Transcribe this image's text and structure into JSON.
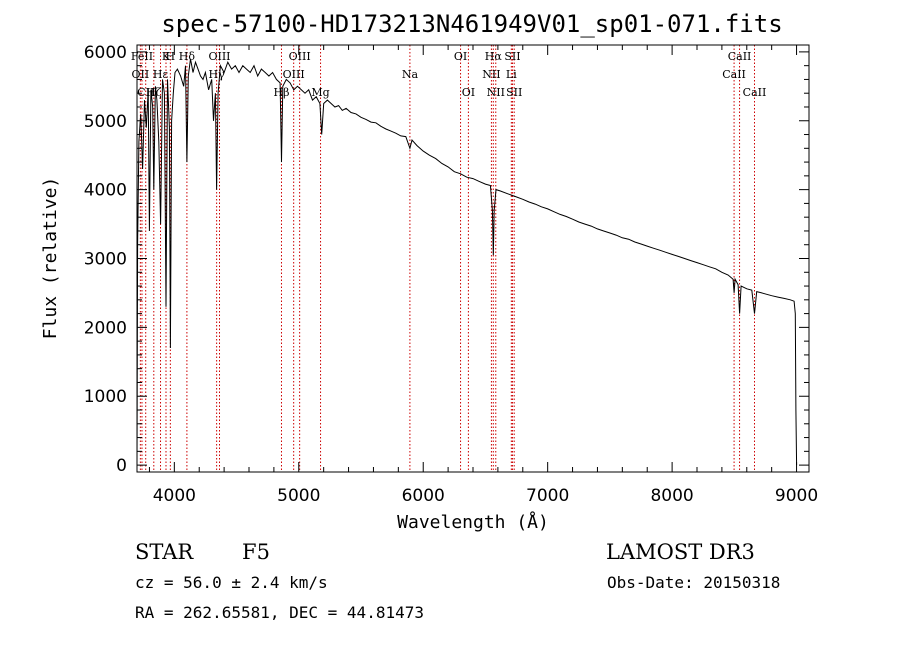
{
  "chart_data": {
    "type": "line",
    "title": "spec-57100-HD173213N461949V01_sp01-071.fits",
    "xlabel": "Wavelength (Å)",
    "ylabel": "Flux (relative)",
    "xlim": [
      3700,
      9100
    ],
    "ylim": [
      -100,
      6100
    ],
    "xticks": [
      4000,
      5000,
      6000,
      7000,
      8000,
      9000
    ],
    "yticks": [
      0,
      1000,
      2000,
      3000,
      4000,
      5000,
      6000
    ],
    "xtick_labels": [
      "4000",
      "5000",
      "6000",
      "7000",
      "8000",
      "9000"
    ],
    "ytick_labels": [
      "0",
      "1000",
      "2000",
      "3000",
      "4000",
      "5000",
      "6000"
    ],
    "spectrum": [
      [
        3700,
        0
      ],
      [
        3705,
        3200
      ],
      [
        3715,
        4700
      ],
      [
        3730,
        5100
      ],
      [
        3745,
        4300
      ],
      [
        3760,
        5300
      ],
      [
        3775,
        4900
      ],
      [
        3790,
        5450
      ],
      [
        3800,
        3400
      ],
      [
        3812,
        5450
      ],
      [
        3826,
        5200
      ],
      [
        3835,
        4000
      ],
      [
        3848,
        5500
      ],
      [
        3860,
        5300
      ],
      [
        3875,
        4700
      ],
      [
        3890,
        3500
      ],
      [
        3905,
        5600
      ],
      [
        3920,
        5400
      ],
      [
        3933,
        2300
      ],
      [
        3945,
        5600
      ],
      [
        3960,
        4900
      ],
      [
        3968,
        1700
      ],
      [
        3978,
        5000
      ],
      [
        3992,
        5400
      ],
      [
        4005,
        5700
      ],
      [
        4025,
        5750
      ],
      [
        4050,
        5650
      ],
      [
        4075,
        5500
      ],
      [
        4090,
        5800
      ],
      [
        4101,
        4400
      ],
      [
        4112,
        5650
      ],
      [
        4130,
        5900
      ],
      [
        4150,
        5700
      ],
      [
        4170,
        5850
      ],
      [
        4190,
        5750
      ],
      [
        4210,
        5650
      ],
      [
        4230,
        5600
      ],
      [
        4250,
        5700
      ],
      [
        4275,
        5450
      ],
      [
        4300,
        5600
      ],
      [
        4315,
        5000
      ],
      [
        4330,
        5400
      ],
      [
        4340,
        4000
      ],
      [
        4352,
        5400
      ],
      [
        4370,
        5800
      ],
      [
        4400,
        5700
      ],
      [
        4430,
        5850
      ],
      [
        4460,
        5750
      ],
      [
        4490,
        5800
      ],
      [
        4520,
        5700
      ],
      [
        4550,
        5800
      ],
      [
        4580,
        5750
      ],
      [
        4610,
        5700
      ],
      [
        4640,
        5800
      ],
      [
        4670,
        5650
      ],
      [
        4700,
        5750
      ],
      [
        4730,
        5700
      ],
      [
        4760,
        5650
      ],
      [
        4790,
        5700
      ],
      [
        4820,
        5600
      ],
      [
        4850,
        5550
      ],
      [
        4861,
        4400
      ],
      [
        4872,
        5500
      ],
      [
        4900,
        5600
      ],
      [
        4930,
        5550
      ],
      [
        4960,
        5450
      ],
      [
        4990,
        5500
      ],
      [
        5020,
        5450
      ],
      [
        5050,
        5400
      ],
      [
        5080,
        5450
      ],
      [
        5110,
        5300
      ],
      [
        5140,
        5350
      ],
      [
        5170,
        5250
      ],
      [
        5184,
        4800
      ],
      [
        5200,
        5250
      ],
      [
        5230,
        5300
      ],
      [
        5260,
        5250
      ],
      [
        5290,
        5200
      ],
      [
        5320,
        5220
      ],
      [
        5350,
        5150
      ],
      [
        5380,
        5180
      ],
      [
        5420,
        5120
      ],
      [
        5460,
        5100
      ],
      [
        5500,
        5050
      ],
      [
        5540,
        5020
      ],
      [
        5580,
        4980
      ],
      [
        5620,
        4970
      ],
      [
        5660,
        4920
      ],
      [
        5700,
        4880
      ],
      [
        5740,
        4850
      ],
      [
        5780,
        4820
      ],
      [
        5820,
        4780
      ],
      [
        5860,
        4770
      ],
      [
        5893,
        4600
      ],
      [
        5910,
        4720
      ],
      [
        5950,
        4640
      ],
      [
        6000,
        4560
      ],
      [
        6050,
        4500
      ],
      [
        6100,
        4450
      ],
      [
        6150,
        4380
      ],
      [
        6200,
        4330
      ],
      [
        6250,
        4260
      ],
      [
        6300,
        4230
      ],
      [
        6350,
        4180
      ],
      [
        6400,
        4160
      ],
      [
        6450,
        4120
      ],
      [
        6500,
        4080
      ],
      [
        6540,
        4060
      ],
      [
        6556,
        3700
      ],
      [
        6563,
        3050
      ],
      [
        6570,
        3700
      ],
      [
        6585,
        4000
      ],
      [
        6620,
        3980
      ],
      [
        6680,
        3940
      ],
      [
        6740,
        3900
      ],
      [
        6800,
        3860
      ],
      [
        6850,
        3820
      ],
      [
        6900,
        3790
      ],
      [
        6950,
        3750
      ],
      [
        7000,
        3720
      ],
      [
        7050,
        3680
      ],
      [
        7100,
        3640
      ],
      [
        7150,
        3610
      ],
      [
        7200,
        3570
      ],
      [
        7250,
        3530
      ],
      [
        7300,
        3500
      ],
      [
        7350,
        3470
      ],
      [
        7400,
        3430
      ],
      [
        7450,
        3400
      ],
      [
        7500,
        3370
      ],
      [
        7550,
        3340
      ],
      [
        7600,
        3300
      ],
      [
        7650,
        3280
      ],
      [
        7700,
        3240
      ],
      [
        7750,
        3210
      ],
      [
        7800,
        3180
      ],
      [
        7850,
        3150
      ],
      [
        7900,
        3120
      ],
      [
        7950,
        3090
      ],
      [
        8000,
        3060
      ],
      [
        8050,
        3030
      ],
      [
        8100,
        3000
      ],
      [
        8150,
        2970
      ],
      [
        8200,
        2940
      ],
      [
        8250,
        2910
      ],
      [
        8300,
        2880
      ],
      [
        8350,
        2850
      ],
      [
        8400,
        2800
      ],
      [
        8450,
        2760
      ],
      [
        8490,
        2700
      ],
      [
        8498,
        2500
      ],
      [
        8506,
        2700
      ],
      [
        8530,
        2620
      ],
      [
        8542,
        2200
      ],
      [
        8554,
        2600
      ],
      [
        8600,
        2560
      ],
      [
        8640,
        2540
      ],
      [
        8662,
        2200
      ],
      [
        8680,
        2520
      ],
      [
        8720,
        2500
      ],
      [
        8760,
        2480
      ],
      [
        8800,
        2460
      ],
      [
        8850,
        2440
      ],
      [
        8900,
        2420
      ],
      [
        8950,
        2400
      ],
      [
        8980,
        2380
      ],
      [
        8990,
        2200
      ],
      [
        8995,
        800
      ],
      [
        9000,
        0
      ]
    ],
    "lines": [
      {
        "name": "FeII",
        "wl": 3740,
        "row": 0
      },
      {
        "name": "K",
        "wl": 3933,
        "row": 0
      },
      {
        "name": "H",
        "wl": 3968,
        "row": 0
      },
      {
        "name": "Hδ",
        "wl": 4101,
        "row": 0
      },
      {
        "name": "OIII",
        "wl": 4363,
        "row": 0
      },
      {
        "name": "OIII",
        "wl": 5007,
        "row": 0
      },
      {
        "name": "OI",
        "wl": 6300,
        "row": 0
      },
      {
        "name": "Hα",
        "wl": 6563,
        "row": 0
      },
      {
        "name": "SII",
        "wl": 6717,
        "row": 0
      },
      {
        "name": "CaII",
        "wl": 8542,
        "row": 0
      },
      {
        "name": "OII",
        "wl": 3727,
        "row": 1
      },
      {
        "name": "Hε",
        "wl": 3889,
        "row": 1
      },
      {
        "name": "Hγ",
        "wl": 4340,
        "row": 1
      },
      {
        "name": "OIII",
        "wl": 4959,
        "row": 1
      },
      {
        "name": "Na",
        "wl": 5893,
        "row": 1
      },
      {
        "name": "NII",
        "wl": 6548,
        "row": 1
      },
      {
        "name": "Li",
        "wl": 6708,
        "row": 1
      },
      {
        "name": "CaII",
        "wl": 8498,
        "row": 1
      },
      {
        "name": "CII",
        "wl": 3770,
        "row": 2
      },
      {
        "name": "Hζ",
        "wl": 3835,
        "row": 2
      },
      {
        "name": "Hβ",
        "wl": 4861,
        "row": 2
      },
      {
        "name": "Mg",
        "wl": 5175,
        "row": 2
      },
      {
        "name": "OI",
        "wl": 6363,
        "row": 2
      },
      {
        "name": "NII",
        "wl": 6583,
        "row": 2
      },
      {
        "name": "SII",
        "wl": 6731,
        "row": 2
      },
      {
        "name": "CaII",
        "wl": 8662,
        "row": 2
      }
    ],
    "line_color": "#cc0000"
  },
  "info": {
    "class_label": "STAR",
    "subclass": "F5",
    "survey": "LAMOST DR3",
    "cz": "cz = 56.0 ± 2.4 km/s",
    "obs_date": "Obs-Date: 20150318",
    "coords": "RA = 262.65581, DEC =  44.81473"
  }
}
